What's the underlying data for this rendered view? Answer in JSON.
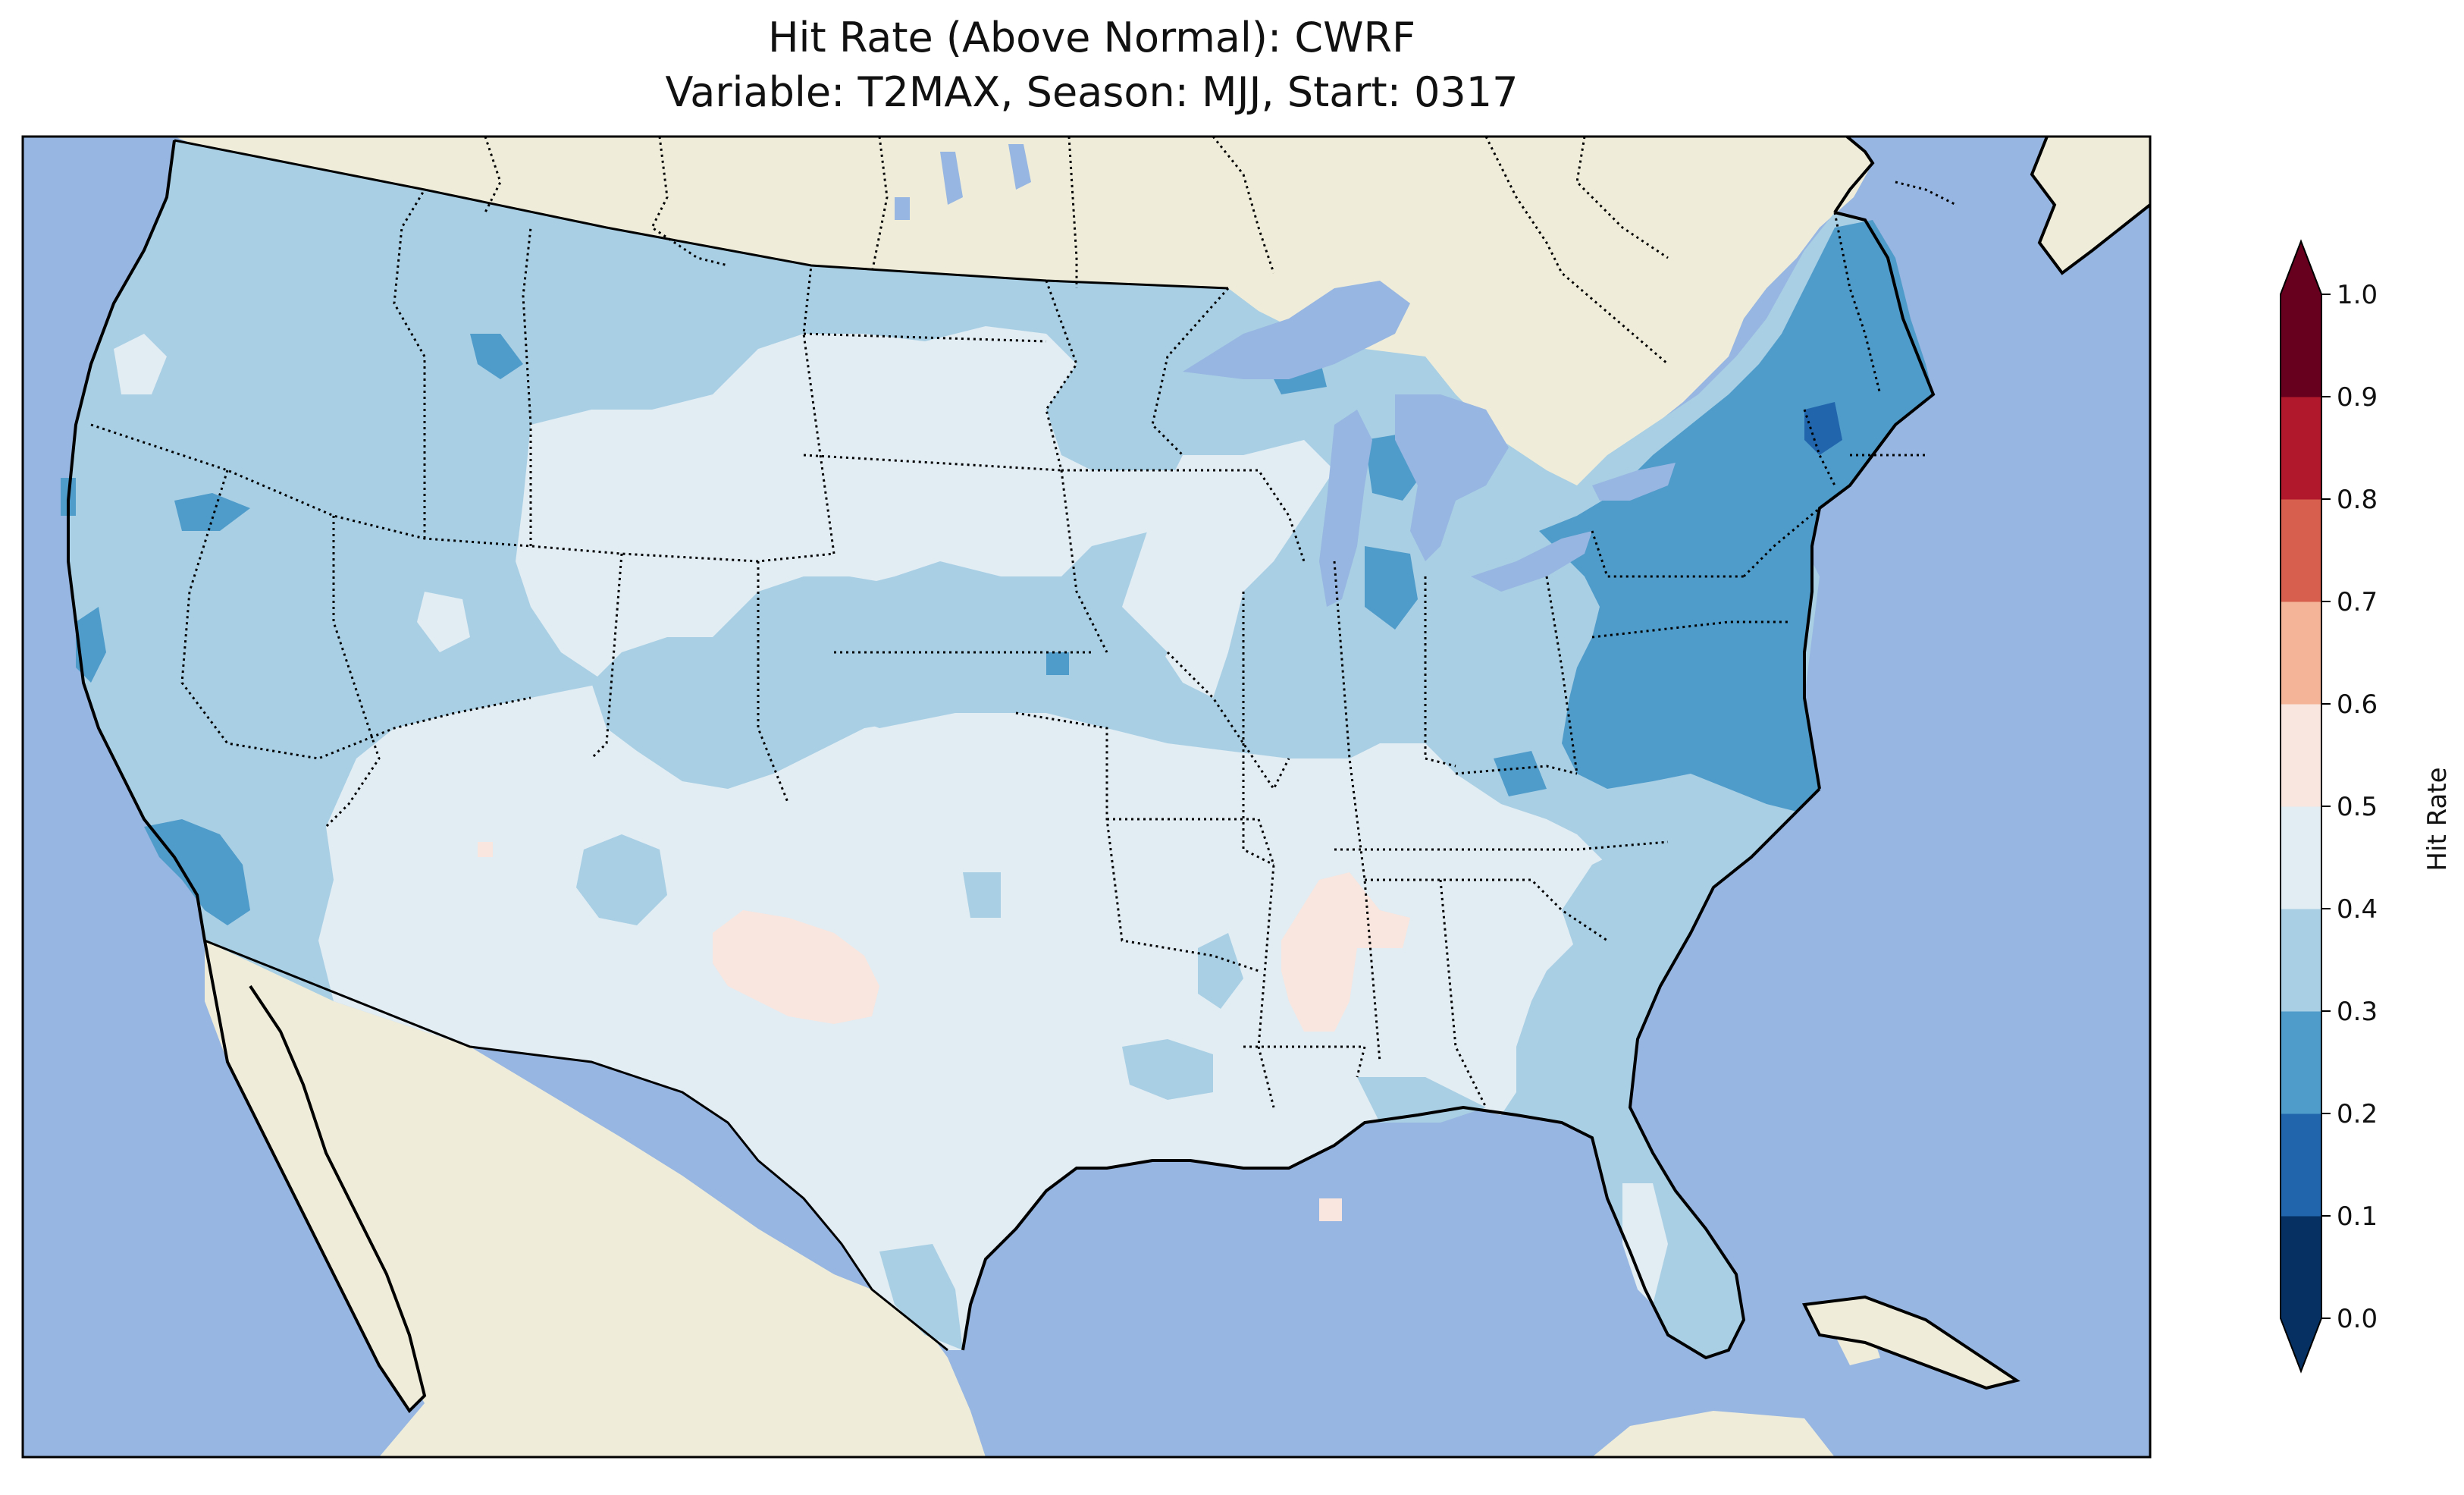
{
  "title": "Hit Rate (Above Normal): CWRF",
  "subtitle": "Variable: T2MAX, Season: MJJ, Start: 0317",
  "colors": {
    "ocean": "#97b6e1",
    "land": "#efedda",
    "lakes": "#97b6e1",
    "border": "#000000"
  },
  "colorbar": {
    "label": "Hit Rate",
    "ticks": [
      "0.0",
      "0.1",
      "0.2",
      "0.3",
      "0.4",
      "0.5",
      "0.6",
      "0.7",
      "0.8",
      "0.9",
      "1.0"
    ],
    "bins": [
      {
        "range": "0.0-0.1",
        "color": "#053061"
      },
      {
        "range": "0.1-0.2",
        "color": "#2166ac"
      },
      {
        "range": "0.2-0.3",
        "color": "#4f9bca"
      },
      {
        "range": "0.3-0.4",
        "color": "#a8cfe4"
      },
      {
        "range": "0.4-0.5",
        "color": "#e1ecf3"
      },
      {
        "range": "0.5-0.6",
        "color": "#f9e6de"
      },
      {
        "range": "0.6-0.7",
        "color": "#f4b498"
      },
      {
        "range": "0.7-0.8",
        "color": "#d6604d"
      },
      {
        "range": "0.8-0.9",
        "color": "#b2182b"
      },
      {
        "range": "0.9-1.0",
        "color": "#67001f"
      }
    ],
    "under_color": "#053061",
    "over_color": "#67001f"
  },
  "regions": [
    {
      "name": "west",
      "bin": "0.3-0.4"
    },
    {
      "name": "northern-plains-band",
      "bin": "0.4-0.5"
    },
    {
      "name": "central-plains",
      "bin": "0.3-0.4"
    },
    {
      "name": "southwest-south",
      "bin": "0.4-0.5"
    },
    {
      "name": "midwest",
      "bin": "0.3-0.4"
    },
    {
      "name": "northeast-appalachians",
      "bin": "0.2-0.3"
    },
    {
      "name": "new-york-pocket",
      "bin": "0.1-0.2"
    },
    {
      "name": "southeast",
      "bin": "0.3-0.4"
    },
    {
      "name": "new-mexico-patch",
      "bin": "0.5-0.6"
    },
    {
      "name": "mississippi-patch",
      "bin": "0.5-0.6"
    }
  ]
}
